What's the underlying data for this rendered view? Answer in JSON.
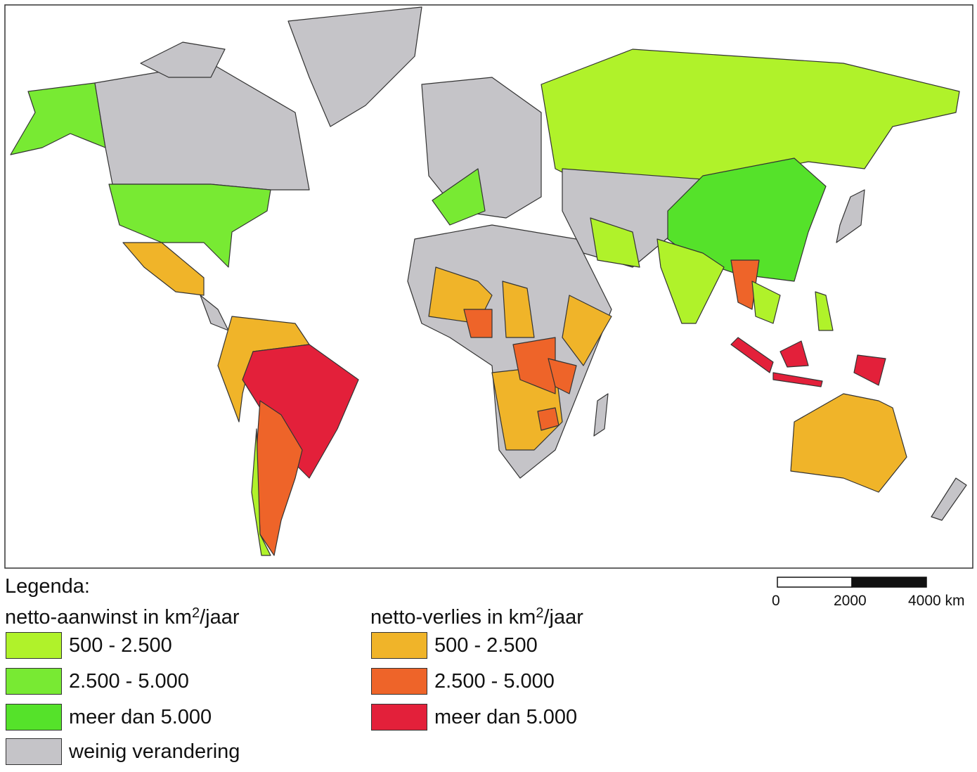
{
  "legend": {
    "title": "Legenda:",
    "gain": {
      "heading": "netto-aanwinst in km",
      "heading_sup": "2",
      "heading_end": "/jaar",
      "items": [
        {
          "label": "500 - 2.500",
          "color": "#b0f22a"
        },
        {
          "label": "2.500 - 5.000",
          "color": "#78ea33"
        },
        {
          "label": "meer dan 5.000",
          "color": "#55e22a"
        }
      ]
    },
    "loss": {
      "heading": "netto-verlies in km",
      "heading_sup": "2",
      "heading_end": "/jaar",
      "items": [
        {
          "label": "500 - 2.500",
          "color": "#f0b429"
        },
        {
          "label": "2.500 - 5.000",
          "color": "#ee6429"
        },
        {
          "label": "meer dan 5.000",
          "color": "#e3203a"
        }
      ]
    },
    "other": {
      "label": "weinig verandering",
      "color": "#c5c4c8"
    }
  },
  "scale_bar": {
    "labels": [
      "0",
      "2000",
      "4000 km"
    ]
  }
}
